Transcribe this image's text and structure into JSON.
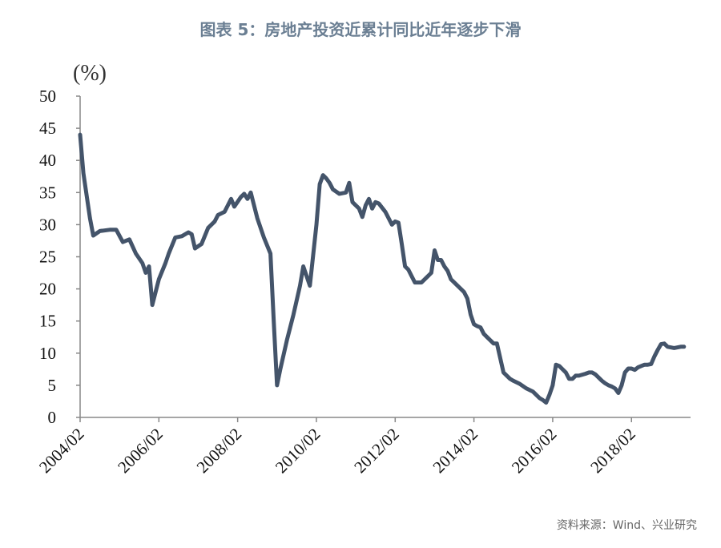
{
  "chart_data": {
    "type": "line",
    "title": "图表 5：房地产投资近累计同比近年逐步下滑",
    "y_label": "(%)",
    "note": "资料来源：Wind、兴业研究",
    "x": [
      "2004/02",
      "2004/03",
      "2004/05",
      "2004/06",
      "2004/08",
      "2004/11",
      "2005/01",
      "2005/03",
      "2005/05",
      "2005/07",
      "2005/09",
      "2005/10",
      "2005/11",
      "2005/12",
      "2006/02",
      "2006/04",
      "2006/05",
      "2006/07",
      "2006/09",
      "2006/11",
      "2006/12",
      "2007/01",
      "2007/03",
      "2007/05",
      "2007/07",
      "2007/08",
      "2007/10",
      "2007/12",
      "2008/01",
      "2008/03",
      "2008/04",
      "2008/05",
      "2008/06",
      "2008/08",
      "2008/10",
      "2008/12",
      "2009/01",
      "2009/02",
      "2009/03",
      "2009/05",
      "2009/07",
      "2009/09",
      "2009/10",
      "2009/11",
      "2009/12",
      "2010/02",
      "2010/03",
      "2010/04",
      "2010/05",
      "2010/06",
      "2010/07",
      "2010/09",
      "2010/11",
      "2010/12",
      "2011/01",
      "2011/02",
      "2011/03",
      "2011/04",
      "2011/05",
      "2011/06",
      "2011/07",
      "2011/08",
      "2011/09",
      "2011/11",
      "2012/01",
      "2012/02",
      "2012/03",
      "2012/04",
      "2012/05",
      "2012/06",
      "2012/07",
      "2012/08",
      "2012/10",
      "2012/12",
      "2013/01",
      "2013/02",
      "2013/03",
      "2013/04",
      "2013/05",
      "2013/06",
      "2013/07",
      "2013/09",
      "2013/10",
      "2013/11",
      "2013/12",
      "2014/01",
      "2014/02",
      "2014/03",
      "2014/04",
      "2014/05",
      "2014/06",
      "2014/07",
      "2014/08",
      "2014/09",
      "2014/11",
      "2014/12",
      "2015/01",
      "2015/02",
      "2015/04",
      "2015/06",
      "2015/08",
      "2015/09",
      "2015/10",
      "2015/11",
      "2015/12",
      "2016/01",
      "2016/02",
      "2016/03",
      "2016/04",
      "2016/05",
      "2016/06",
      "2016/07",
      "2016/08",
      "2016/09",
      "2016/10",
      "2016/12",
      "2017/01",
      "2017/02",
      "2017/03",
      "2017/04",
      "2017/05",
      "2017/06",
      "2017/07",
      "2017/08",
      "2017/09",
      "2017/10",
      "2017/11",
      "2017/12",
      "2018/01",
      "2018/02",
      "2018/03",
      "2018/04",
      "2018/05",
      "2018/06",
      "2018/07",
      "2018/08",
      "2018/09",
      "2018/10",
      "2018/11",
      "2018/12",
      "2019/01",
      "2019/03",
      "2019/05",
      "2019/06"
    ],
    "series": [
      {
        "color": "#44546a",
        "values": [
          44,
          38,
          31,
          28.3,
          29,
          29.2,
          29.2,
          27.3,
          27.7,
          25.5,
          24,
          22.5,
          23.5,
          17.5,
          21.5,
          24,
          25.5,
          28,
          28.2,
          28.8,
          28.5,
          26.3,
          27,
          29.5,
          30.5,
          31.5,
          32,
          34,
          32.8,
          34.3,
          34.8,
          34,
          35,
          31,
          28,
          25.5,
          15,
          5,
          7.5,
          12,
          16,
          20.5,
          23.5,
          22,
          20.5,
          30,
          36.3,
          37.7,
          37.2,
          36.5,
          35.5,
          34.8,
          35,
          36.5,
          33.5,
          33,
          32.5,
          31.2,
          33,
          34,
          32.5,
          33.5,
          33.3,
          32,
          30,
          30.5,
          30.3,
          27,
          23.5,
          23,
          22,
          21,
          21,
          22,
          22.5,
          26,
          24.5,
          24.5,
          23.5,
          22.8,
          21.5,
          20.5,
          20,
          19.5,
          18.5,
          16,
          14.5,
          14.2,
          14,
          13,
          12.5,
          12,
          11.5,
          11.5,
          7,
          6.5,
          6,
          5.7,
          5.2,
          4.5,
          4,
          3.5,
          3,
          2.7,
          2.3,
          3.5,
          5,
          8.2,
          8,
          7.5,
          7,
          6,
          6,
          6.5,
          6.5,
          6.8,
          7,
          7,
          6.7,
          6.2,
          5.7,
          5.3,
          5,
          4.8,
          4.5,
          3.8,
          5,
          7,
          7.6,
          7.6,
          7.4,
          7.8,
          8,
          8.2,
          8.2,
          8.3,
          9.5,
          10.5,
          11.4,
          11.5,
          11,
          10.8,
          11,
          11
        ]
      }
    ],
    "xlim": [
      "2004/02",
      "2019/08"
    ],
    "xticks": [
      "2004/02",
      "2006/02",
      "2008/02",
      "2010/02",
      "2012/02",
      "2014/02",
      "2016/02",
      "2018/02"
    ],
    "ylim": [
      0,
      50
    ],
    "yticks": [
      0,
      5,
      10,
      15,
      20,
      25,
      30,
      35,
      40,
      45,
      50
    ],
    "grid": false
  }
}
